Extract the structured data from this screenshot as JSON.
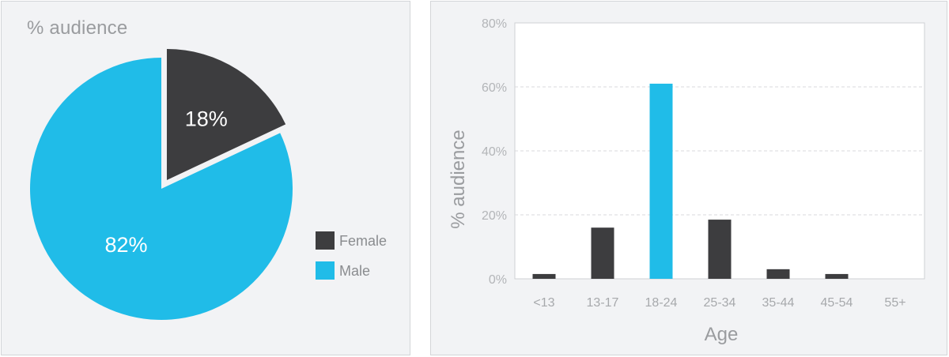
{
  "chart_data": [
    {
      "type": "pie",
      "title": "% audience",
      "slices": [
        {
          "label": "Female",
          "value": 18,
          "text": "18%",
          "color": "#3d3d3f",
          "exploded": true
        },
        {
          "label": "Male",
          "value": 82,
          "text": "82%",
          "color": "#20bce8",
          "exploded": false
        }
      ],
      "legend": {
        "placement": "right",
        "entries": [
          "Female",
          "Male"
        ]
      }
    },
    {
      "type": "bar",
      "categories": [
        "<13",
        "13-17",
        "18-24",
        "25-34",
        "35-44",
        "45-54",
        "55+"
      ],
      "values": [
        1.5,
        16,
        61,
        18.5,
        3,
        1.5,
        0
      ],
      "bar_colors": [
        "#3d3d3f",
        "#3d3d3f",
        "#20bce8",
        "#3d3d3f",
        "#3d3d3f",
        "#3d3d3f",
        "#3d3d3f"
      ],
      "xlabel": "Age",
      "ylabel": "% audience",
      "ylim": [
        0,
        80
      ],
      "yticks": [
        0,
        20,
        40,
        60,
        80
      ],
      "ytick_labels": [
        "0%",
        "20%",
        "40%",
        "60%",
        "80%"
      ],
      "grid": "horizontal dashed"
    }
  ]
}
